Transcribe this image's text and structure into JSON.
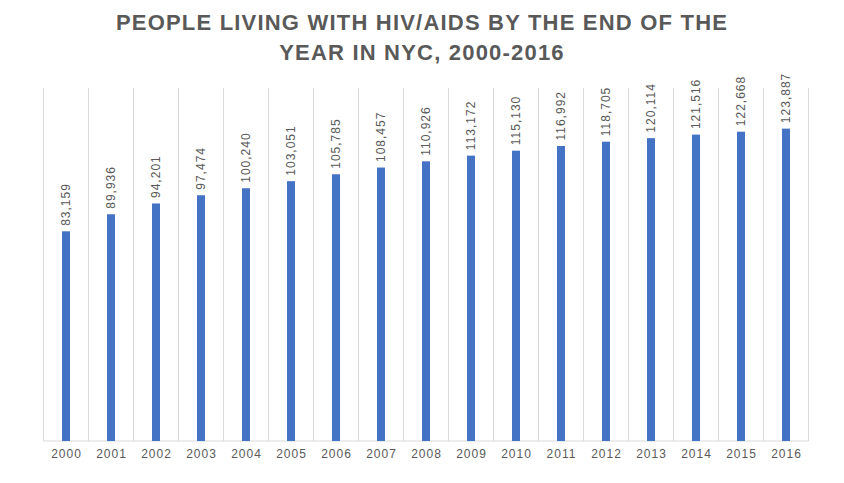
{
  "chart_data": {
    "type": "bar",
    "title": "PEOPLE LIVING WITH HIV/AIDS BY THE END OF THE YEAR IN NYC, 2000-2016",
    "categories": [
      "2000",
      "2001",
      "2002",
      "2003",
      "2004",
      "2005",
      "2006",
      "2007",
      "2008",
      "2009",
      "2010",
      "2011",
      "2012",
      "2013",
      "2014",
      "2015",
      "2016"
    ],
    "values": [
      83159,
      89936,
      94201,
      97474,
      100240,
      103051,
      105785,
      108457,
      110926,
      113172,
      115130,
      116992,
      118705,
      120114,
      121516,
      122668,
      123887
    ],
    "value_labels": [
      "83,159",
      "89,936",
      "94,201",
      "97,474",
      "100,240",
      "103,051",
      "105,785",
      "108,457",
      "110,926",
      "113,172",
      "115,130",
      "116,992",
      "118,705",
      "120,114",
      "121,516",
      "122,668",
      "123,887"
    ],
    "color": "#4472c4",
    "ylim": [
      0,
      140000
    ],
    "data_labels": true,
    "tick_labels": "x",
    "grid": true
  }
}
